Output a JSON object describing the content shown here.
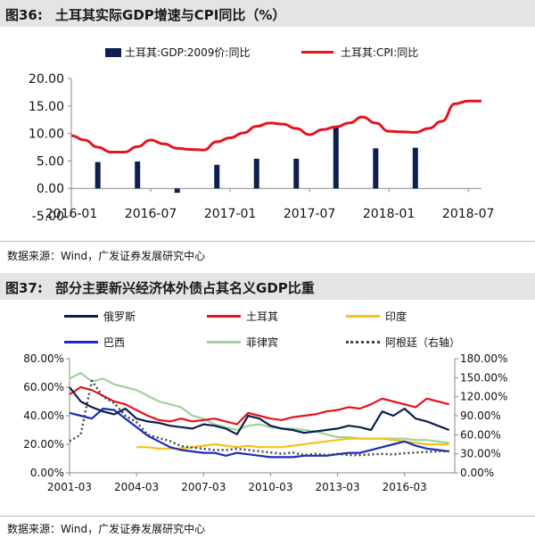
{
  "figure1": {
    "number": "图36:",
    "title": "土耳其实际GDP增速与CPI同比（%）",
    "source": "数据来源：Wind，广发证券发展研究中心",
    "legend": [
      {
        "label": "土耳其:GDP:2009价:同比",
        "color": "#0d1f4f",
        "kind": "bar"
      },
      {
        "label": "土耳其:CPI:同比",
        "color": "#e5141b",
        "kind": "line"
      }
    ]
  },
  "figure2": {
    "number": "图37:",
    "title": "部分主要新兴经济体外债占其名义GDP比重",
    "source": "数据来源：Wind，广发证券发展研究中心",
    "legend": [
      {
        "label": "俄罗斯",
        "color": "#0d1f4f",
        "style": "solid"
      },
      {
        "label": "土耳其",
        "color": "#e5141b",
        "style": "solid"
      },
      {
        "label": "印度",
        "color": "#f7c01a",
        "style": "solid"
      },
      {
        "label": "巴西",
        "color": "#1a2bbf",
        "style": "solid"
      },
      {
        "label": "菲律宾",
        "color": "#9ed39c",
        "style": "solid"
      },
      {
        "label": "阿根廷（右轴）",
        "color": "#444444",
        "style": "dotted"
      }
    ]
  },
  "chart_data": [
    {
      "type": "bar",
      "title": "土耳其实际GDP增速与CPI同比（%）",
      "ylim": [
        -5,
        20
      ],
      "y_ticks": [
        "-5.00",
        "0.00",
        "5.00",
        "10.00",
        "15.00",
        "20.00"
      ],
      "x_ticks": [
        "2016-01",
        "2016-07",
        "2017-01",
        "2017-07",
        "2018-01",
        "2018-07"
      ],
      "grid": false,
      "series": [
        {
          "name": "土耳其:GDP:2009价:同比",
          "type": "bar",
          "x": [
            2,
            5,
            8,
            11,
            14,
            17,
            20,
            23,
            26
          ],
          "values": [
            4.8,
            4.9,
            -0.8,
            4.3,
            5.4,
            5.4,
            11.1,
            7.3,
            7.4
          ]
        },
        {
          "name": "土耳其:CPI:同比",
          "type": "line",
          "x": [
            0,
            1,
            2,
            3,
            4,
            5,
            6,
            7,
            8,
            9,
            10,
            11,
            12,
            13,
            14,
            15,
            16,
            17,
            18,
            19,
            20,
            21,
            22,
            23,
            24,
            25,
            26,
            27,
            28,
            29,
            30,
            31
          ],
          "values": [
            9.6,
            8.8,
            7.5,
            6.6,
            6.6,
            7.6,
            8.8,
            8.1,
            7.3,
            7.1,
            7.0,
            8.5,
            9.2,
            10.1,
            11.3,
            11.9,
            11.7,
            10.9,
            9.8,
            10.7,
            11.2,
            11.9,
            13.0,
            11.9,
            10.4,
            10.3,
            10.2,
            10.9,
            12.2,
            15.4,
            15.9,
            15.9
          ]
        }
      ]
    },
    {
      "type": "line",
      "title": "部分主要新兴经济体外债占其名义GDP比重",
      "ylim": [
        0,
        80
      ],
      "y_ticks": [
        "0.00%",
        "20.00%",
        "40.00%",
        "60.00%",
        "80.00%"
      ],
      "y2lim": [
        0,
        180
      ],
      "y2_ticks": [
        "0.00%",
        "30.00%",
        "60.00%",
        "90.00%",
        "120.00%",
        "150.00%",
        "180.00%"
      ],
      "x_ticks": [
        "2001-03",
        "2004-03",
        "2007-03",
        "2010-03",
        "2013-03",
        "2016-03"
      ],
      "x_range": [
        2001.0,
        2018.25
      ],
      "grid": false,
      "series": [
        {
          "name": "俄罗斯",
          "axis": "left",
          "x": [
            2001,
            2001.5,
            2002,
            2002.5,
            2003,
            2003.5,
            2004,
            2004.5,
            2005,
            2005.5,
            2006,
            2006.5,
            2007,
            2007.5,
            2008,
            2008.5,
            2009,
            2009.5,
            2010,
            2010.5,
            2011,
            2011.5,
            2012,
            2012.5,
            2013,
            2013.5,
            2014,
            2014.5,
            2015,
            2015.5,
            2016,
            2016.5,
            2017,
            2017.5,
            2018
          ],
          "values": [
            60,
            50,
            46,
            43,
            41,
            45,
            38,
            36,
            35,
            33,
            32,
            31,
            34,
            33,
            31,
            27,
            40,
            38,
            33,
            31,
            30,
            28,
            29,
            30,
            31,
            33,
            32,
            30,
            43,
            40,
            45,
            38,
            36,
            33,
            30
          ]
        },
        {
          "name": "土耳其",
          "axis": "left",
          "x": [
            2001,
            2001.5,
            2002,
            2002.5,
            2003,
            2003.5,
            2004,
            2004.5,
            2005,
            2005.5,
            2006,
            2006.5,
            2007,
            2007.5,
            2008,
            2008.5,
            2009,
            2009.5,
            2010,
            2010.5,
            2011,
            2011.5,
            2012,
            2012.5,
            2013,
            2013.5,
            2014,
            2014.5,
            2015,
            2015.5,
            2016,
            2016.5,
            2017,
            2017.5,
            2018
          ],
          "values": [
            55,
            60,
            58,
            54,
            50,
            48,
            44,
            40,
            37,
            36,
            38,
            36,
            37,
            38,
            36,
            34,
            42,
            40,
            38,
            37,
            39,
            40,
            41,
            43,
            44,
            46,
            45,
            48,
            52,
            50,
            48,
            46,
            52,
            50,
            48
          ]
        },
        {
          "name": "印度",
          "axis": "left",
          "x": [
            2004,
            2004.5,
            2005,
            2005.5,
            2006,
            2006.5,
            2007,
            2007.5,
            2008,
            2008.5,
            2009,
            2009.5,
            2010,
            2010.5,
            2011,
            2011.5,
            2012,
            2012.5,
            2013,
            2013.5,
            2014,
            2014.5,
            2015,
            2015.5,
            2016,
            2016.5,
            2017,
            2017.5,
            2018
          ],
          "values": [
            18,
            18,
            17,
            17,
            17,
            18,
            19,
            20,
            19,
            18,
            19,
            18,
            18,
            18,
            19,
            20,
            21,
            22,
            23,
            24,
            24,
            24,
            24,
            23,
            22,
            21,
            20,
            20,
            20
          ]
        },
        {
          "name": "巴西",
          "axis": "left",
          "x": [
            2001,
            2001.5,
            2002,
            2002.5,
            2003,
            2003.5,
            2004,
            2004.5,
            2005,
            2005.5,
            2006,
            2006.5,
            2007,
            2007.5,
            2008,
            2008.5,
            2009,
            2009.5,
            2010,
            2010.5,
            2011,
            2011.5,
            2012,
            2012.5,
            2013,
            2013.5,
            2014,
            2014.5,
            2015,
            2015.5,
            2016,
            2016.5,
            2017,
            2017.5,
            2018
          ],
          "values": [
            42,
            40,
            38,
            45,
            44,
            38,
            32,
            26,
            22,
            18,
            16,
            15,
            14,
            14,
            12,
            14,
            13,
            12,
            11,
            11,
            11,
            12,
            12,
            12,
            13,
            14,
            14,
            16,
            18,
            20,
            22,
            19,
            17,
            16,
            15
          ]
        },
        {
          "name": "菲律宾",
          "axis": "left",
          "x": [
            2001,
            2001.5,
            2002,
            2002.5,
            2003,
            2003.5,
            2004,
            2004.5,
            2005,
            2005.5,
            2006,
            2006.5,
            2007,
            2007.5,
            2008,
            2008.5,
            2009,
            2009.5,
            2010,
            2010.5,
            2011,
            2011.5,
            2012,
            2012.5,
            2013,
            2013.5,
            2014,
            2014.5,
            2015,
            2015.5,
            2016,
            2016.5,
            2017,
            2017.5,
            2018
          ],
          "values": [
            66,
            70,
            64,
            66,
            62,
            60,
            58,
            54,
            50,
            48,
            46,
            40,
            38,
            34,
            32,
            30,
            33,
            34,
            32,
            31,
            31,
            30,
            29,
            27,
            25,
            25,
            24,
            24,
            24,
            24,
            24,
            23,
            23,
            22,
            21
          ]
        },
        {
          "name": "阿根廷（右轴）",
          "axis": "right",
          "x": [
            2001,
            2001.5,
            2002,
            2002.5,
            2003,
            2003.5,
            2004,
            2004.5,
            2005,
            2005.5,
            2006,
            2006.5,
            2007,
            2007.5,
            2008,
            2008.5,
            2009,
            2009.5,
            2010,
            2010.5,
            2011,
            2011.5,
            2012,
            2012.5,
            2013,
            2013.5,
            2014,
            2014.5,
            2015,
            2015.5,
            2016,
            2016.5,
            2017,
            2017.5,
            2018
          ],
          "values": [
            50,
            60,
            145,
            120,
            110,
            90,
            80,
            60,
            55,
            50,
            42,
            40,
            38,
            36,
            36,
            38,
            36,
            34,
            32,
            30,
            32,
            28,
            30,
            28,
            30,
            28,
            28,
            29,
            30,
            29,
            31,
            32,
            33,
            34,
            34
          ]
        }
      ]
    }
  ]
}
